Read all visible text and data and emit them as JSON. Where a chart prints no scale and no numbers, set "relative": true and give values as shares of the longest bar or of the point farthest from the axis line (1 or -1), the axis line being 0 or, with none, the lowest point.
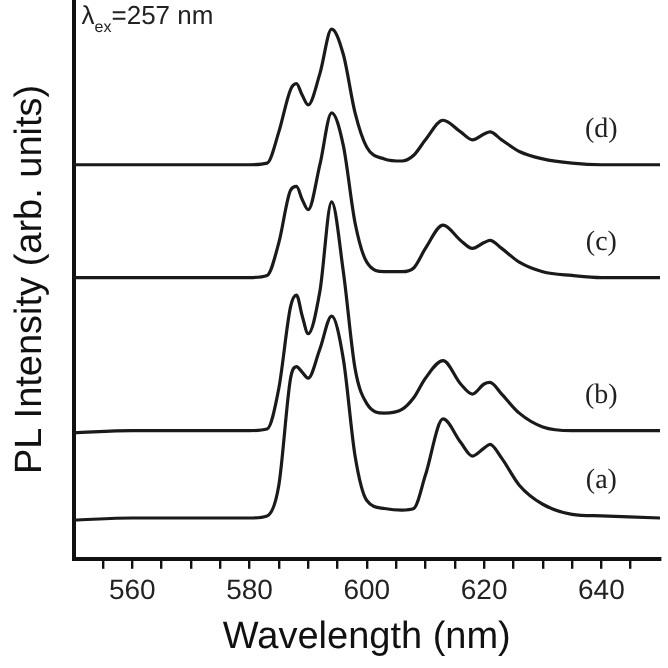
{
  "chart_data": {
    "type": "line",
    "xlabel": "Wavelength (nm)",
    "ylabel": "PL Intensity (arb. units)",
    "relative": true,
    "annotations": [
      "λ$_{ex}$=257 nm"
    ],
    "x": [
      550,
      560,
      570,
      580,
      583,
      585,
      587,
      588,
      589,
      590,
      592,
      594,
      596,
      598,
      600,
      603,
      606,
      608,
      610,
      613,
      616,
      618,
      620,
      621,
      623,
      626,
      630,
      635,
      640,
      650
    ],
    "xlim": [
      550,
      650
    ],
    "xticks": [
      {
        "value": 555,
        "label": null
      },
      560,
      {
        "value": 565,
        "label": null
      },
      {
        "value": 570,
        "label": null
      },
      {
        "value": 575,
        "label": null
      },
      580,
      {
        "value": 585,
        "label": null
      },
      {
        "value": 590,
        "label": null
      },
      {
        "value": 595,
        "label": null
      },
      600,
      {
        "value": 605,
        "label": null
      },
      {
        "value": 610,
        "label": null
      },
      {
        "value": 615,
        "label": null
      },
      620,
      {
        "value": 625,
        "label": null
      },
      {
        "value": 630,
        "label": null
      },
      {
        "value": 635,
        "label": null
      },
      640,
      {
        "value": 645,
        "label": null
      }
    ],
    "series": [
      {
        "name": "(a)",
        "color": "#1a1a1a",
        "values": [
          0.073,
          0.077,
          0.077,
          0.077,
          0.081,
          0.139,
          0.341,
          0.363,
          0.352,
          0.341,
          0.396,
          0.458,
          0.377,
          0.194,
          0.11,
          0.095,
          0.092,
          0.095,
          0.158,
          0.264,
          0.22,
          0.194,
          0.209,
          0.216,
          0.19,
          0.139,
          0.103,
          0.084,
          0.081,
          0.077
        ]
      },
      {
        "name": "(b)",
        "color": "#1a1a1a",
        "values": [
          0.238,
          0.242,
          0.242,
          0.242,
          0.245,
          0.322,
          0.476,
          0.498,
          0.458,
          0.425,
          0.505,
          0.674,
          0.542,
          0.359,
          0.293,
          0.275,
          0.282,
          0.304,
          0.341,
          0.374,
          0.33,
          0.311,
          0.33,
          0.333,
          0.311,
          0.275,
          0.249,
          0.242,
          0.242,
          0.242
        ]
      },
      {
        "name": "(c)",
        "color": "#1a1a1a",
        "values": [
          0.531,
          0.531,
          0.531,
          0.531,
          0.535,
          0.597,
          0.696,
          0.703,
          0.678,
          0.659,
          0.744,
          0.842,
          0.78,
          0.634,
          0.56,
          0.542,
          0.542,
          0.549,
          0.586,
          0.63,
          0.601,
          0.586,
          0.597,
          0.601,
          0.586,
          0.56,
          0.542,
          0.535,
          0.531,
          0.531
        ]
      },
      {
        "name": "(d)",
        "color": "#1a1a1a",
        "values": [
          0.744,
          0.744,
          0.744,
          0.744,
          0.747,
          0.806,
          0.886,
          0.897,
          0.875,
          0.857,
          0.916,
          1,
          0.952,
          0.842,
          0.777,
          0.755,
          0.751,
          0.762,
          0.791,
          0.828,
          0.806,
          0.791,
          0.802,
          0.806,
          0.791,
          0.769,
          0.755,
          0.747,
          0.744,
          0.744
        ]
      }
    ],
    "legend": false,
    "grid": false,
    "marker": "none",
    "line_style": "solid"
  }
}
